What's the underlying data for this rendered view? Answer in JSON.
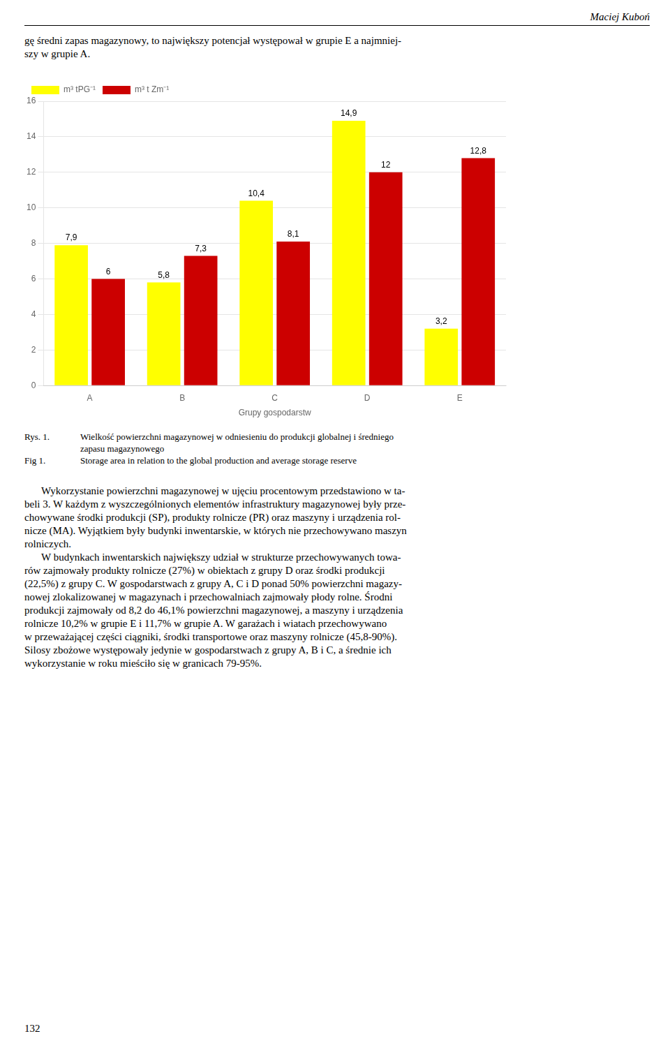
{
  "header": "Maciej Kuboń",
  "text_before": [
    "gę średni zapas magazynowy, to największy potencjał występował w grupie E a najmniej-",
    "szy w grupie A."
  ],
  "caption": [
    {
      "label": "Rys. 1.",
      "text": "Wielkość powierzchni magazynowej w odniesieniu do produkcji globalnej i średniego"
    },
    {
      "text": "zapasu magazynowego"
    },
    {
      "label": "Fig 1.",
      "text": "Storage area in relation to the global production and average storage reserve"
    }
  ],
  "body": [
    [
      "Wykorzystanie powierzchni magazynowej w ujęciu procentowym przedstawiono w ta-",
      "beli 3. W każdym z wyszczególnionych elementów infrastruktury magazynowej były prze-",
      "chowywane środki produkcji (SP), produkty rolnicze (PR) oraz maszyny i urządzenia rol-",
      "nicze (MA). Wyjątkiem były budynki inwentarskie, w których nie przechowywano maszyn",
      "rolniczych."
    ],
    [
      "W budynkach inwentarskich największy udział w strukturze przechowywanych towa-",
      "rów zajmowały produkty rolnicze (27%) w obiektach z grupy D oraz środki produkcji",
      "(22,5%) z grupy C. W gospodarstwach z grupy A, C i D ponad 50% powierzchni magazy-",
      "nowej zlokalizowanej w magazynach i przechowalniach zajmowały płody rolne. Środni",
      "produkcji zajmowały od 8,2 do 46,1% powierzchni magazynowej, a maszyny  i urządzenia",
      "rolnicze 10,2% w grupie E i 11,7% w grupie A. W garażach i wiatach przechowywano",
      "w przeważającej części ciągniki, środki transportowe oraz maszyny rolnicze (45,8-90%).",
      "Silosy zbożowe występowały jedynie w gospodarstwach z grupy A, B i C, a średnie ich",
      "wykorzystanie w roku mieściło się w granicach 79-95%."
    ]
  ],
  "page_number": "132",
  "chart_data": {
    "type": "bar",
    "categories": [
      "A",
      "B",
      "C",
      "D",
      "E"
    ],
    "series": [
      {
        "name": "m³ tPG⁻¹",
        "color": "#FFFF00",
        "values": [
          7.9,
          5.8,
          10.4,
          14.9,
          3.2
        ],
        "value_labels": [
          "7,9",
          "5,8",
          "10,4",
          "14,9",
          "3,2"
        ]
      },
      {
        "name": "m³ t Zm⁻¹",
        "color": "#CC0000",
        "values": [
          6.0,
          7.3,
          8.1,
          12.0,
          12.8
        ],
        "value_labels": [
          "6",
          "7,3",
          "8,1",
          "12",
          "12,8"
        ]
      }
    ],
    "xlabel": "Grupy gospodarstw",
    "ylim": [
      0,
      16
    ],
    "yticks": [
      0,
      2,
      4,
      6,
      8,
      10,
      12,
      14,
      16
    ],
    "grid": true,
    "legend": "upper left",
    "data_labels": true
  }
}
